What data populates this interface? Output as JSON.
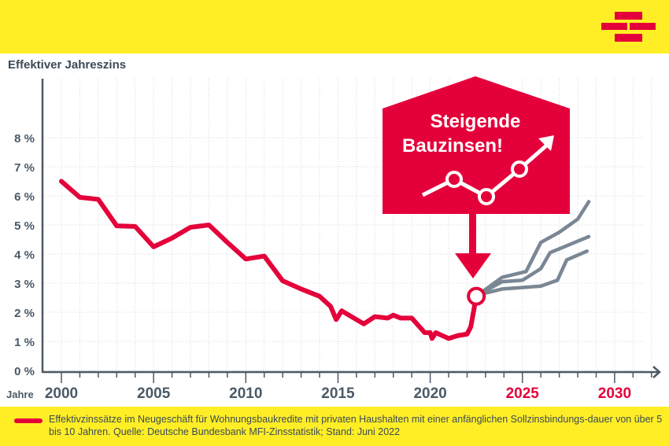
{
  "colors": {
    "brand_yellow": "#ffee26",
    "accent_red": "#e4003a",
    "axis": "#4a5966",
    "projection_gray": "#7a8794"
  },
  "logo": {
    "icon": "brick-logo-icon"
  },
  "chart_data": {
    "type": "line",
    "ylabel": "Effektiver Jahreszins",
    "xlabel": "Jahre",
    "xlim": [
      1999.2,
      2032.3
    ],
    "ylim": [
      0,
      9
    ],
    "y_ticks": [
      "0 %",
      "1 %",
      "2 %",
      "3 %",
      "4 %",
      "5 %",
      "6 %",
      "7 %",
      "8 %"
    ],
    "x_ticks": [
      {
        "label": "2000",
        "v": 2000,
        "future": false
      },
      {
        "label": "2005",
        "v": 2005,
        "future": false
      },
      {
        "label": "2010",
        "v": 2010,
        "future": false
      },
      {
        "label": "2015",
        "v": 2015,
        "future": false
      },
      {
        "label": "2020",
        "v": 2020,
        "future": false
      },
      {
        "label": "2025",
        "v": 2025,
        "future": true
      },
      {
        "label": "2030",
        "v": 2030,
        "future": true
      }
    ],
    "grid": true,
    "series": [
      {
        "role": "actual",
        "x": [
          2000,
          2001,
          2002,
          2003,
          2004,
          2005,
          2006,
          2007,
          2008,
          2009,
          2010,
          2011,
          2012,
          2013,
          2014,
          2014.6,
          2014.9,
          2015.2,
          2016.4,
          2017,
          2017.7,
          2018,
          2018.4,
          2019,
          2019.7,
          2020,
          2020.1,
          2020.3,
          2021,
          2021.5,
          2022,
          2022.2,
          2022.5
        ],
        "y": [
          6.5,
          5.95,
          5.88,
          4.97,
          4.95,
          4.25,
          4.55,
          4.92,
          5.0,
          4.4,
          3.83,
          3.93,
          3.08,
          2.8,
          2.55,
          2.2,
          1.75,
          2.05,
          1.6,
          1.85,
          1.8,
          1.9,
          1.8,
          1.8,
          1.3,
          1.3,
          1.1,
          1.3,
          1.1,
          1.2,
          1.25,
          1.5,
          2.55
        ]
      },
      {
        "role": "projection-high",
        "x": [
          2022.6,
          2023.9,
          2025.2,
          2026,
          2027,
          2028,
          2028.6
        ],
        "y": [
          2.6,
          3.2,
          3.4,
          4.4,
          4.75,
          5.2,
          5.8
        ]
      },
      {
        "role": "projection-mid",
        "x": [
          2022.6,
          2023.9,
          2025,
          2026,
          2026.5,
          2028.6
        ],
        "y": [
          2.6,
          3.05,
          3.1,
          3.5,
          4.05,
          4.6
        ]
      },
      {
        "role": "projection-low",
        "x": [
          2022.6,
          2023.9,
          2025,
          2026,
          2026.9,
          2027.4,
          2028.5
        ],
        "y": [
          2.6,
          2.8,
          2.85,
          2.9,
          3.1,
          3.8,
          4.1
        ]
      }
    ],
    "annotation": {
      "line1": "Steigende",
      "line2": "Bauzinsen!",
      "at": {
        "x": 2022.5,
        "y": 2.55
      }
    },
    "legend": {
      "text": "Effektivzinssätze im Neugeschäft für Wohnungsbaukredite mit privaten Haushalten mit einer anfänglichen Sollzinsbindungs-dauer von über 5 bis 10 Jahren. Quelle: Deutsche Bundesbank MFI-Zinsstatistik; Stand: Juni 2022",
      "placement": "bottom"
    }
  }
}
